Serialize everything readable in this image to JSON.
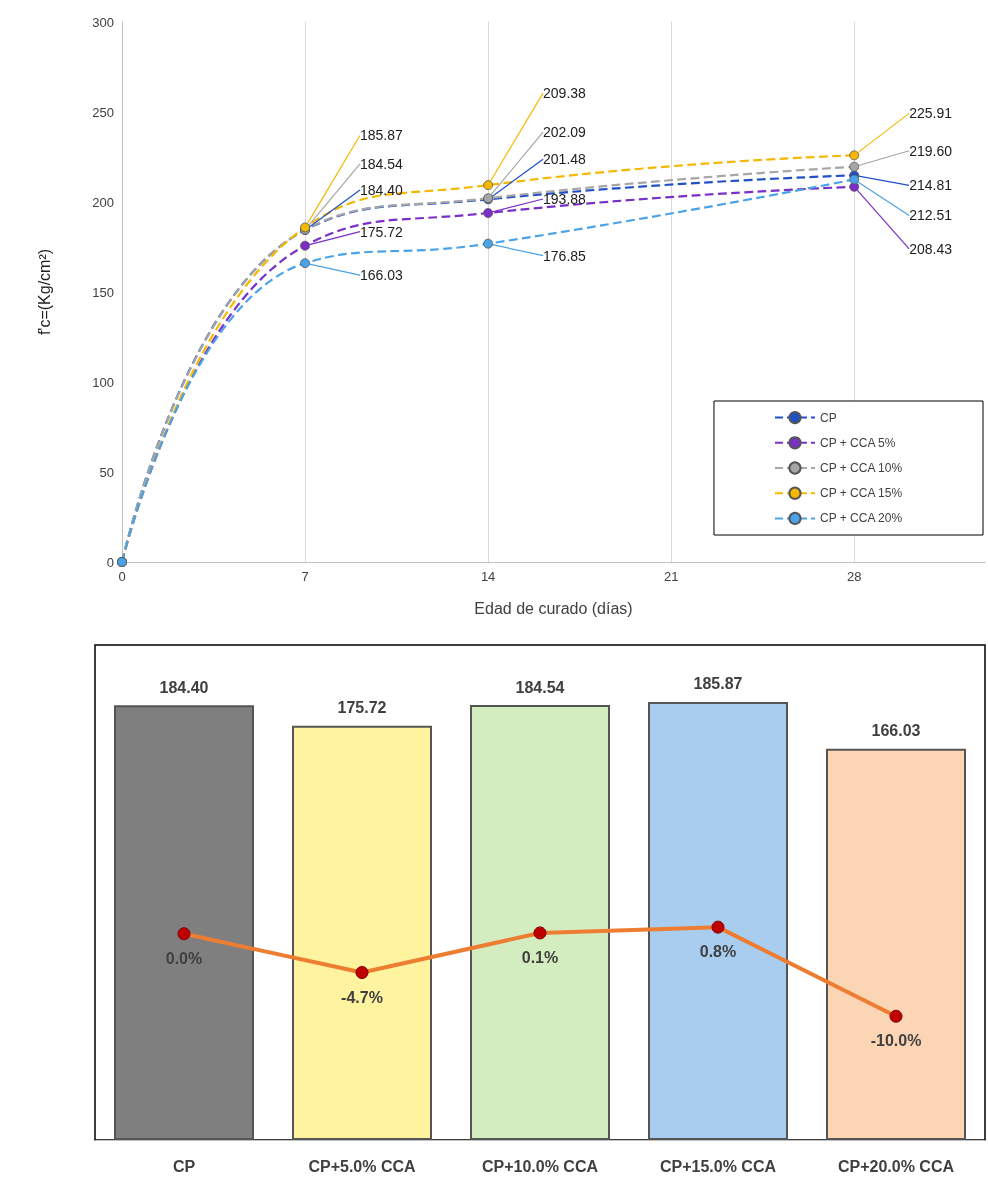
{
  "chart_data": [
    {
      "type": "line",
      "xlabel": "Edad de curado (días)",
      "ylabel": "f'c=(Kg/cm²)",
      "x": [
        0,
        7,
        14,
        28
      ],
      "xlim": [
        0,
        33
      ],
      "xticks": [
        0,
        7,
        14,
        21,
        28
      ],
      "ylim": [
        0,
        300
      ],
      "yticks": [
        0,
        50,
        100,
        150,
        200,
        250,
        300
      ],
      "grid": "x",
      "legend": "bottom right",
      "marker": "circle",
      "line_style": "dashed",
      "series": [
        {
          "name": "CP",
          "color": "#2050c8",
          "values": [
            0,
            184.4,
            201.48,
            214.81
          ],
          "value_labels": [
            null,
            "184.40",
            "201.48",
            "214.81"
          ]
        },
        {
          "name": "CP + CCA 5%",
          "color": "#7a2fc8",
          "values": [
            0,
            175.72,
            193.88,
            208.43
          ],
          "value_labels": [
            null,
            "175.72",
            "193.88",
            "208.43"
          ]
        },
        {
          "name": "CP + CCA 10%",
          "color": "#a6a6a6",
          "values": [
            0,
            184.54,
            202.09,
            219.6
          ],
          "value_labels": [
            null,
            "184.54",
            "202.09",
            "219.60"
          ]
        },
        {
          "name": "CP + CCA 15%",
          "color": "#f5b800",
          "values": [
            0,
            185.87,
            209.38,
            225.91
          ],
          "value_labels": [
            null,
            "185.87",
            "209.38",
            "225.91"
          ]
        },
        {
          "name": "CP + CCA 20%",
          "color": "#4aa3e8",
          "values": [
            0,
            166.03,
            176.85,
            212.51
          ],
          "value_labels": [
            null,
            "166.03",
            "176.85",
            "212.51"
          ]
        }
      ]
    },
    {
      "type": "bar",
      "categories": [
        "CP",
        "CP+5.0% CCA",
        "CP+10.0% CCA",
        "CP+15.0% CCA",
        "CP+20.0% CCA"
      ],
      "ylim": [
        0,
        210
      ],
      "y2lim": [
        -25,
        35
      ],
      "tick_labels": "x",
      "marker": "circle",
      "series": [
        {
          "type": "bar",
          "colors": [
            "#7f7f7f",
            "#fff3a0",
            "#d3ecc0",
            "#a9cdef",
            "#fcd5b4"
          ],
          "values": [
            184.4,
            175.72,
            184.54,
            185.87,
            166.03
          ],
          "value_labels": [
            "184.40",
            "175.72",
            "184.54",
            "185.87",
            "166.03"
          ]
        },
        {
          "type": "line",
          "axis": "y2",
          "color": "#ed7d31",
          "values": [
            0,
            -4.7,
            0.1,
            0.8,
            -10.0
          ],
          "value_labels": [
            "0.0%",
            "-4.7%",
            "0.1%",
            "0.8%",
            "-10.0%"
          ]
        }
      ]
    }
  ]
}
